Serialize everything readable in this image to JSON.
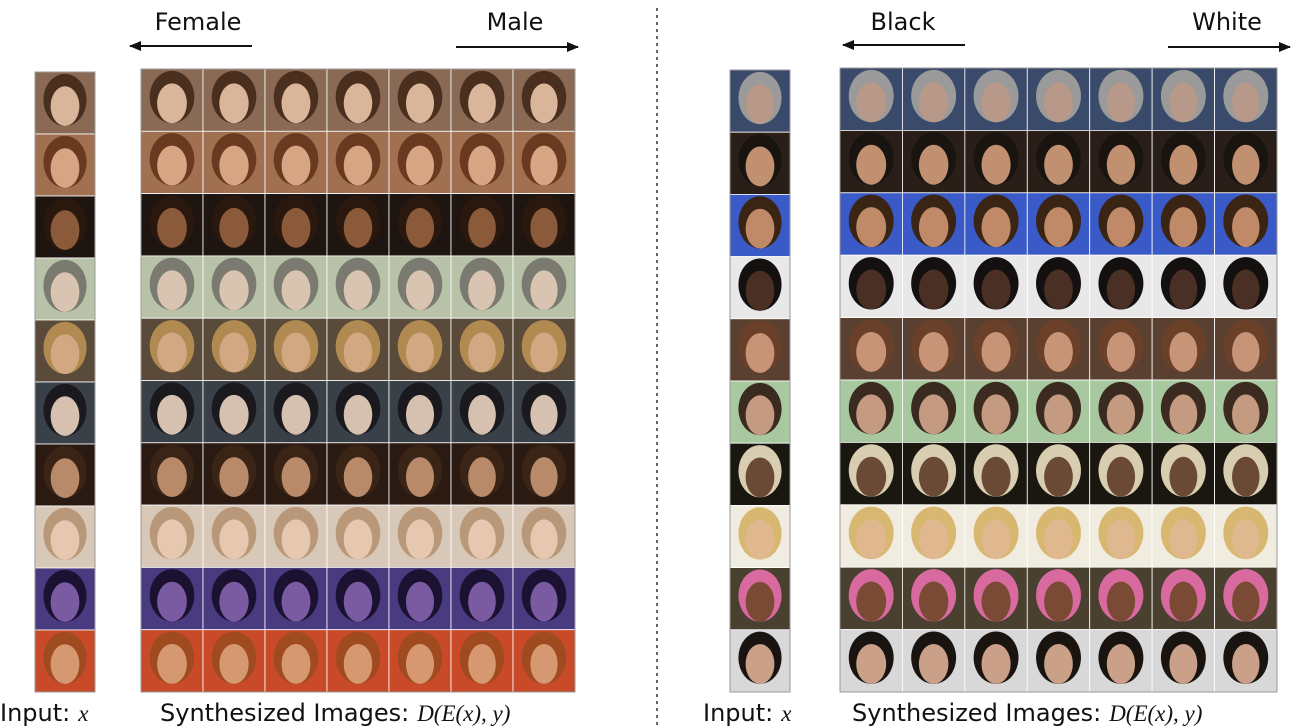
{
  "left_panel": {
    "arrow_left": "Female",
    "arrow_right": "Male",
    "input_label": "Input:",
    "input_var": "x",
    "synth_label": "Synthesized Images:",
    "synth_expr": "D(E(x), y)"
  },
  "right_panel": {
    "arrow_left": "Black",
    "arrow_right": "White",
    "input_label": "Input:",
    "input_var": "x",
    "synth_label": "Synthesized Images:",
    "synth_expr": "D(E(x), y)"
  }
}
